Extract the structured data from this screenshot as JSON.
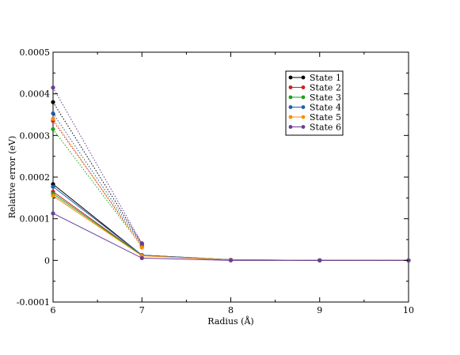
{
  "chart_data": {
    "type": "line",
    "xlabel": "Radius (Å)",
    "ylabel": "Relative error (eV)",
    "xlim": [
      6,
      10
    ],
    "ylim": [
      -0.0001,
      0.0005
    ],
    "x_ticks": [
      "6",
      "7",
      "8",
      "9",
      "10"
    ],
    "y_ticks": [
      "-0.0001",
      "0",
      "0.0001",
      "0.0002",
      "0.0003",
      "0.0004",
      "0.0005"
    ],
    "legend_position": "top-right",
    "x": [
      6,
      7,
      8,
      9,
      10
    ],
    "series": [
      {
        "name": "State 1",
        "color": "#000000",
        "values": [
          0.000183,
          1.25e-05,
          1.5e-06,
          2e-07,
          0.0
        ],
        "dotted_values": [
          0.00038,
          3.95e-05
        ]
      },
      {
        "name": "State 2",
        "color": "#cc2020",
        "values": [
          0.000165,
          1.2e-05,
          1.2e-06,
          2e-07,
          0.0
        ],
        "dotted_values": [
          0.000335,
          3.5e-05
        ]
      },
      {
        "name": "State 3",
        "color": "#1ea01e",
        "values": [
          0.00016,
          1.2e-05,
          1.2e-06,
          2e-07,
          0.0
        ],
        "dotted_values": [
          0.000315,
          3.3e-05
        ]
      },
      {
        "name": "State 4",
        "color": "#2060b0",
        "values": [
          0.000177,
          1.25e-05,
          1.5e-06,
          2e-07,
          0.0
        ],
        "dotted_values": [
          0.000353,
          3.8e-05
        ]
      },
      {
        "name": "State 5",
        "color": "#ff8c00",
        "values": [
          0.000155,
          1.1e-05,
          1.2e-06,
          2e-07,
          0.0
        ],
        "dotted_values": [
          0.00034,
          3.1e-05
        ]
      },
      {
        "name": "State 6",
        "color": "#6a3d9a",
        "values": [
          0.000113,
          5.5e-06,
          0.0,
          0.0,
          0.0
        ],
        "dotted_values": [
          0.000415,
          4.1e-05
        ]
      }
    ]
  }
}
